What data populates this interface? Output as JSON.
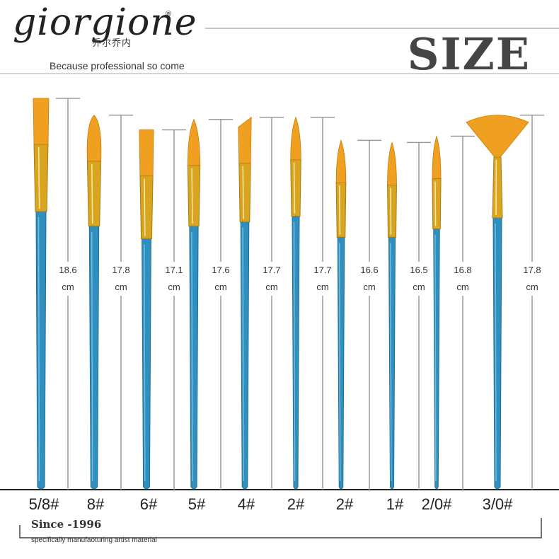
{
  "brand": {
    "name": "giorgione",
    "registered": "®",
    "chinese": "乔尔乔内",
    "tagline": "Because professional so come"
  },
  "title": "SIZE",
  "footer": {
    "since": "Since -1996",
    "subtitle": "specifically manufaoturing artist material"
  },
  "colors": {
    "handle": "#2f8fbf",
    "ferrule": "#d9a520",
    "bristle": "#f0a020",
    "line": "#999999"
  },
  "brushes": [
    {
      "label": "5/8#",
      "length": "18.6",
      "unit": "cm",
      "tip": "flat"
    },
    {
      "label": "8#",
      "length": "17.8",
      "unit": "cm",
      "tip": "filbert"
    },
    {
      "label": "6#",
      "length": "17.1",
      "unit": "cm",
      "tip": "flat"
    },
    {
      "label": "5#",
      "length": "17.6",
      "unit": "cm",
      "tip": "round"
    },
    {
      "label": "4#",
      "length": "17.7",
      "unit": "cm",
      "tip": "angular"
    },
    {
      "label": "2#",
      "length": "17.7",
      "unit": "cm",
      "tip": "round"
    },
    {
      "label": "2#",
      "length": "16.6",
      "unit": "cm",
      "tip": "round"
    },
    {
      "label": "1#",
      "length": "16.5",
      "unit": "cm",
      "tip": "round"
    },
    {
      "label": "2/0#",
      "length": "16.8",
      "unit": "cm",
      "tip": "round"
    },
    {
      "label": "3/0#",
      "length": "17.8",
      "unit": "cm",
      "tip": "fan"
    }
  ]
}
